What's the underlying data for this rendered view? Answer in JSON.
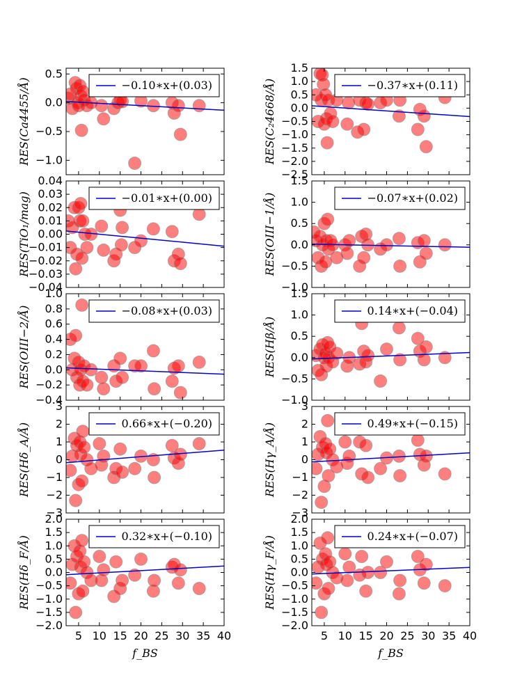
{
  "figure": {
    "colors": {
      "marker": "#ff0000",
      "fit_line": "#0000cc",
      "axes": "#000000"
    }
  },
  "chart_data": [
    {
      "type": "scatter",
      "ylabel": "RES(Ca4455/Å)",
      "xlabel": "",
      "xlim": [
        2,
        40
      ],
      "ylim": [
        -1.25,
        0.6
      ],
      "yticks": [
        -1.0,
        -0.5,
        0.0,
        0.5
      ],
      "ytick_labels": [
        "−1.0",
        "−0.5",
        "0.0",
        "0.5"
      ],
      "legend": {
        "label": "−0.10∗x+(0.03)",
        "placement": "top-right"
      },
      "fit": {
        "slope": -0.004,
        "intercept": 0.03
      },
      "x": [
        2.5,
        3,
        3.5,
        4.2,
        4.5,
        4.8,
        5,
        5.3,
        5.5,
        5.7,
        6,
        6.3,
        7,
        8,
        10.5,
        11,
        13.5,
        14.5,
        15,
        15.5,
        18.5,
        20,
        23,
        27.5,
        28,
        29,
        29.5,
        34
      ],
      "y": [
        0.08,
        0.15,
        -0.1,
        0.35,
        0.25,
        0.0,
        -0.05,
        0.3,
        0.12,
        -0.48,
        0.2,
        0.05,
        -0.05,
        0.0,
        -0.05,
        -0.28,
        -0.1,
        0.0,
        0.05,
        0.02,
        -1.05,
        0.03,
        -0.05,
        0.0,
        -0.18,
        -0.05,
        -0.55,
        -0.05
      ]
    },
    {
      "type": "scatter",
      "ylabel": "RES(C₂4668/Å)",
      "xlabel": "",
      "xlim": [
        2,
        40
      ],
      "ylim": [
        -2.5,
        1.5
      ],
      "yticks": [
        -2.5,
        -2.0,
        -1.5,
        -1.0,
        -0.5,
        0.0,
        0.5,
        1.0,
        1.5
      ],
      "ytick_labels": [
        "−2.5",
        "−2.0",
        "−1.5",
        "−1.0",
        "−0.5",
        "0.0",
        "0.5",
        "1.0",
        "1.5"
      ],
      "legend": {
        "label": "−0.37∗x+(0.11)",
        "placement": "top-right"
      },
      "fit": {
        "slope": -0.0107,
        "intercept": 0.11
      },
      "x": [
        3,
        3.5,
        4,
        4.3,
        4.5,
        4.8,
        5,
        5.3,
        5.5,
        5.7,
        6,
        6.5,
        7,
        8,
        10.5,
        10.8,
        13,
        13.5,
        14.5,
        15,
        15.5,
        18.5,
        20,
        23,
        23.2,
        27.5,
        28,
        29,
        29.5,
        34
      ],
      "y": [
        0.5,
        -0.5,
        1.3,
        0.3,
        1.25,
        0.9,
        -0.6,
        0.5,
        -0.4,
        -1.3,
        0.3,
        -0.2,
        -0.5,
        0.3,
        -0.6,
        0.2,
        -0.9,
        0.3,
        -0.8,
        0.2,
        0.15,
        0.2,
        0.3,
        -0.3,
        0.3,
        -0.8,
        -0.05,
        -0.3,
        -1.45,
        0.4
      ]
    },
    {
      "type": "scatter",
      "ylabel": "RES(TiO₁/mag)",
      "xlabel": "",
      "xlim": [
        2,
        40
      ],
      "ylim": [
        -0.04,
        0.04
      ],
      "yticks": [
        -0.04,
        -0.03,
        -0.02,
        -0.01,
        0.0,
        0.01,
        0.02,
        0.03,
        0.04
      ],
      "ytick_labels": [
        "−0.04",
        "−0.03",
        "−0.02",
        "−0.01",
        "0.00",
        "0.01",
        "0.02",
        "0.03",
        "0.04"
      ],
      "legend": {
        "label": "−0.01∗x+(0.00)",
        "placement": "top-right"
      },
      "fit": {
        "slope": -0.0003,
        "intercept": 0.003
      },
      "x": [
        2.5,
        3,
        3.5,
        4,
        4.3,
        4.6,
        5,
        5.3,
        5.5,
        5.8,
        6,
        6.5,
        7,
        8,
        10.5,
        11,
        13.5,
        14,
        15,
        15.3,
        15.5,
        18.5,
        20,
        23,
        27.5,
        28,
        29,
        29.5,
        34
      ],
      "y": [
        0.01,
        -0.01,
        0.005,
        0.02,
        -0.026,
        -0.015,
        0.02,
        0.01,
        0.023,
        -0.018,
        0.01,
        0.0,
        -0.01,
        0.0,
        0.006,
        -0.012,
        -0.02,
        -0.015,
        0.018,
        -0.008,
        0.005,
        -0.01,
        -0.005,
        0.004,
        0.002,
        -0.02,
        -0.015,
        -0.022,
        0.015
      ]
    },
    {
      "type": "scatter",
      "ylabel": "RES(OIII−1/Å)",
      "xlabel": "",
      "xlim": [
        2,
        40
      ],
      "ylim": [
        -1.0,
        1.5
      ],
      "yticks": [
        -1.0,
        -0.5,
        0.0,
        0.5,
        1.0,
        1.5
      ],
      "ytick_labels": [
        "−1.0",
        "−0.5",
        "0.0",
        "0.5",
        "1.0",
        "1.5"
      ],
      "legend": {
        "label": "−0.07∗x+(0.02)",
        "placement": "top-right"
      },
      "fit": {
        "slope": -0.0019,
        "intercept": 0.02
      },
      "x": [
        2.5,
        3,
        3.5,
        4,
        4.3,
        4.6,
        5,
        5.3,
        5.5,
        5.8,
        6,
        6.5,
        7,
        8,
        10,
        10.5,
        11,
        13.5,
        14,
        14.5,
        15,
        15.5,
        18.5,
        20,
        23,
        23.2,
        27.5,
        28,
        29,
        29.5,
        34
      ],
      "y": [
        0.3,
        0.1,
        -0.3,
        0.2,
        -0.5,
        0.0,
        0.5,
        -0.4,
        0.1,
        0.6,
        -0.1,
        0.1,
        0.0,
        -0.3,
        0.0,
        -0.2,
        0.1,
        -0.5,
        0.2,
        -0.3,
        0.25,
        0.0,
        -0.1,
        0.0,
        0.15,
        -0.5,
        0.05,
        -0.4,
        0.1,
        -0.2,
        0.0
      ]
    },
    {
      "type": "scatter",
      "ylabel": "RES(OIII−2/Å)",
      "xlabel": "",
      "xlim": [
        2,
        40
      ],
      "ylim": [
        -0.4,
        1.0
      ],
      "yticks": [
        -0.4,
        -0.2,
        0.0,
        0.2,
        0.4,
        0.6,
        0.8,
        1.0
      ],
      "ytick_labels": [
        "−0.4",
        "−0.2",
        "0.0",
        "0.2",
        "0.4",
        "0.6",
        "0.8",
        "1.0"
      ],
      "legend": {
        "label": "−0.08∗x+(0.03)",
        "placement": "top-right"
      },
      "fit": {
        "slope": -0.0022,
        "intercept": 0.03
      },
      "x": [
        3,
        3.5,
        4,
        4.3,
        4.6,
        5,
        5.3,
        5.5,
        5.8,
        6,
        6.3,
        7,
        8,
        10.5,
        11,
        13.5,
        14,
        15,
        15.5,
        18.5,
        20,
        23,
        23.2,
        27.5,
        28,
        29,
        29.5,
        34
      ],
      "y": [
        0.4,
        0.0,
        0.15,
        0.45,
        -0.1,
        0.1,
        -0.2,
        0.0,
        0.85,
        -0.15,
        0.05,
        -0.2,
        0.0,
        -0.1,
        -0.25,
        0.05,
        -0.15,
        0.15,
        -0.1,
        0.05,
        0.05,
        0.25,
        -0.25,
        -0.15,
        0.02,
        0.05,
        -0.3,
        0.1
      ]
    },
    {
      "type": "scatter",
      "ylabel": "RES(Hβ/Å)",
      "xlabel": "",
      "xlim": [
        2,
        40
      ],
      "ylim": [
        -1.0,
        1.5
      ],
      "yticks": [
        -1.0,
        -0.5,
        0.0,
        0.5,
        1.0,
        1.5
      ],
      "ytick_labels": [
        "−1.0",
        "−0.5",
        "0.0",
        "0.5",
        "1.0",
        "1.5"
      ],
      "legend": {
        "label": "0.14∗x+(−0.04)",
        "placement": "top-right"
      },
      "fit": {
        "slope": 0.004,
        "intercept": -0.04
      },
      "x": [
        3,
        3.5,
        4,
        4.3,
        4.6,
        5,
        5.3,
        5.5,
        5.8,
        6,
        6.3,
        7,
        8,
        10.5,
        11,
        13.5,
        14,
        14.5,
        15,
        15.5,
        18.5,
        20,
        23,
        23.2,
        27.5,
        28,
        29,
        29.5,
        34
      ],
      "y": [
        0.05,
        -0.3,
        0.2,
        -0.4,
        0.3,
        0.0,
        0.1,
        -0.2,
        0.35,
        0.0,
        0.25,
        -0.1,
        0.1,
        -0.2,
        0.0,
        -0.15,
        0.8,
        0.15,
        -0.1,
        0.05,
        -0.55,
        0.2,
        0.7,
        -0.05,
        0.45,
        0.15,
        -0.05,
        0.25,
        0.0
      ]
    },
    {
      "type": "scatter",
      "ylabel": "RES(Hδ_A/Å)",
      "xlabel": "",
      "xlim": [
        2,
        40
      ],
      "ylim": [
        -3,
        3
      ],
      "yticks": [
        -3,
        -2,
        -1,
        0,
        1,
        2,
        3
      ],
      "ytick_labels": [
        "−3",
        "−2",
        "−1",
        "0",
        "1",
        "2",
        "3"
      ],
      "legend": {
        "label": "0.66∗x+(−0.20)",
        "placement": "top-right"
      },
      "fit": {
        "slope": 0.0185,
        "intercept": -0.2
      },
      "x": [
        3,
        3.5,
        4,
        4.3,
        4.6,
        5,
        5.3,
        5.5,
        5.8,
        6,
        6.3,
        7,
        8,
        10,
        10.5,
        11,
        13.5,
        14,
        15,
        15.5,
        18.5,
        20,
        23,
        23.2,
        27.5,
        28,
        29,
        29.5,
        34
      ],
      "y": [
        -0.6,
        0.2,
        1.2,
        -2.3,
        0.8,
        -1.4,
        1.0,
        0.3,
        -1.2,
        1.6,
        0.7,
        0.0,
        -0.5,
        0.9,
        -0.3,
        0.2,
        -1.0,
        -0.5,
        0.6,
        -0.7,
        -0.5,
        0.2,
        0.0,
        -1.0,
        0.8,
        0.1,
        -0.2,
        0.3,
        0.9
      ]
    },
    {
      "type": "scatter",
      "ylabel": "RES(Hγ_A/Å)",
      "xlabel": "",
      "xlim": [
        2,
        40
      ],
      "ylim": [
        -3,
        3
      ],
      "yticks": [
        -3,
        -2,
        -1,
        0,
        1,
        2,
        3
      ],
      "ytick_labels": [
        "−3",
        "−2",
        "−1",
        "0",
        "1",
        "2",
        "3"
      ],
      "legend": {
        "label": "0.49∗x+(−0.15)",
        "placement": "top-right"
      },
      "fit": {
        "slope": 0.0135,
        "intercept": -0.15
      },
      "x": [
        3,
        3.5,
        4,
        4.3,
        4.6,
        5,
        5.3,
        5.5,
        5.8,
        6,
        6.3,
        7,
        8,
        10,
        10.5,
        11,
        13.5,
        14,
        15,
        15.5,
        18.5,
        20,
        23,
        23.2,
        27.5,
        28,
        29,
        29.5,
        34
      ],
      "y": [
        -0.5,
        0.3,
        1.3,
        -2.4,
        0.7,
        -1.5,
        0.9,
        0.4,
        2.2,
        -0.9,
        0.6,
        0.0,
        -0.4,
        1.0,
        -0.2,
        0.2,
        1.0,
        -0.8,
        0.8,
        -1.0,
        -0.5,
        0.1,
        0.2,
        -0.9,
        1.1,
        0.3,
        -0.3,
        0.2,
        -0.8
      ]
    },
    {
      "type": "scatter",
      "ylabel": "RES(Hδ_F/Å)",
      "xlabel": "f_BS",
      "xlim": [
        2,
        40
      ],
      "ylim": [
        -2.0,
        2.0
      ],
      "xticks": [
        5,
        10,
        15,
        20,
        25,
        30,
        35,
        40
      ],
      "xtick_labels": [
        "5",
        "10",
        "15",
        "20",
        "25",
        "30",
        "35",
        "40"
      ],
      "yticks": [
        -2.0,
        -1.5,
        -1.0,
        -0.5,
        0.0,
        0.5,
        1.0,
        1.5,
        2.0
      ],
      "ytick_labels": [
        "−2.0",
        "−1.5",
        "−1.0",
        "−0.5",
        "0.0",
        "0.5",
        "1.0",
        "1.5",
        "2.0"
      ],
      "legend": {
        "label": "0.32∗x+(−0.10)",
        "placement": "top-right"
      },
      "fit": {
        "slope": 0.0085,
        "intercept": -0.1
      },
      "x": [
        3,
        3.5,
        4,
        4.3,
        4.6,
        5,
        5.3,
        5.5,
        5.8,
        6,
        6.3,
        7,
        8,
        10,
        10.5,
        11,
        13.5,
        14,
        15,
        15.5,
        18.5,
        20,
        23,
        23.2,
        27.5,
        28,
        29,
        29.5,
        34
      ],
      "y": [
        -0.4,
        0.3,
        1.0,
        -1.5,
        0.6,
        -0.8,
        0.8,
        0.2,
        1.2,
        -0.7,
        0.4,
        0.0,
        -0.3,
        0.6,
        -0.3,
        0.1,
        -0.9,
        0.4,
        -0.6,
        -0.3,
        -0.1,
        0.5,
        -0.7,
        -0.3,
        0.2,
        0.3,
        -0.4,
        0.1,
        -0.6
      ]
    },
    {
      "type": "scatter",
      "ylabel": "RES(Hγ_F/Å)",
      "xlabel": "f_BS",
      "xlim": [
        2,
        40
      ],
      "ylim": [
        -2.0,
        2.0
      ],
      "xticks": [
        5,
        10,
        15,
        20,
        25,
        30,
        35,
        40
      ],
      "xtick_labels": [
        "5",
        "10",
        "15",
        "20",
        "25",
        "30",
        "35",
        "40"
      ],
      "yticks": [
        -2.0,
        -1.5,
        -1.0,
        -0.5,
        0.0,
        0.5,
        1.0,
        1.5,
        2.0
      ],
      "ytick_labels": [
        "−2.0",
        "−1.5",
        "−1.0",
        "−0.5",
        "0.0",
        "0.5",
        "1.0",
        "1.5",
        "2.0"
      ],
      "legend": {
        "label": "0.24∗x+(−0.07)",
        "placement": "top-right"
      },
      "fit": {
        "slope": 0.0065,
        "intercept": -0.07
      },
      "x": [
        3,
        3.5,
        4,
        4.3,
        4.6,
        5,
        5.3,
        5.5,
        5.8,
        6,
        6.3,
        7,
        8,
        10,
        10.5,
        11,
        13.5,
        14,
        15,
        15.5,
        18.5,
        20,
        23,
        23.2,
        27.5,
        28,
        29,
        29.5,
        34
      ],
      "y": [
        -0.4,
        0.2,
        1.1,
        -1.5,
        0.5,
        -0.8,
        0.7,
        0.3,
        1.3,
        -0.6,
        0.4,
        0.0,
        -0.2,
        0.7,
        -0.3,
        0.2,
        -0.1,
        0.6,
        -0.7,
        0.0,
        0.0,
        0.4,
        -0.8,
        -0.3,
        0.6,
        0.1,
        -0.4,
        0.3,
        -0.5
      ]
    }
  ]
}
